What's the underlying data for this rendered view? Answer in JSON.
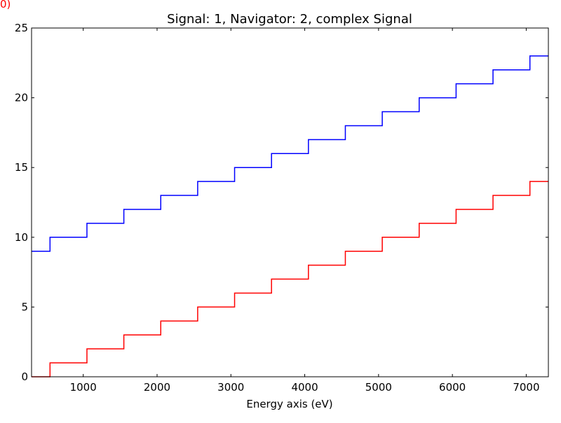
{
  "corner_label": "0)",
  "chart_data": {
    "type": "line",
    "title": "Signal: 1, Navigator: 2, complex Signal",
    "xlabel": "Energy axis (eV)",
    "ylabel": "",
    "xlim": [
      300,
      7300
    ],
    "ylim": [
      0,
      25
    ],
    "xticks": [
      1000,
      2000,
      3000,
      4000,
      5000,
      6000,
      7000
    ],
    "yticks": [
      0,
      5,
      10,
      15,
      20,
      25
    ],
    "grid": false,
    "step_edges_x": [
      300,
      550,
      1050,
      1550,
      2050,
      2550,
      3050,
      3550,
      4050,
      4550,
      5050,
      5550,
      6050,
      6550,
      7050,
      7300
    ],
    "series": [
      {
        "color": "#0000ff",
        "values": [
          9,
          10,
          11,
          12,
          13,
          14,
          15,
          16,
          17,
          18,
          19,
          20,
          21,
          22,
          23
        ]
      },
      {
        "color": "#ff0000",
        "values": [
          0,
          1,
          2,
          3,
          4,
          5,
          6,
          7,
          8,
          9,
          10,
          11,
          12,
          13,
          14
        ]
      }
    ]
  }
}
